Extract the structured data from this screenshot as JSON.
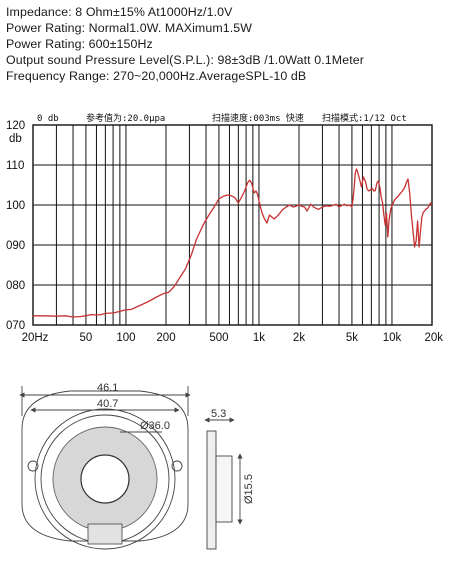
{
  "specs": [
    "Impedance: 8 Ohm±15%  At1000Hz/1.0V",
    "Power Rating: Normal1.0W. MAXimum1.5W",
    "Power Rating: 600±150Hz",
    "Output sound Pressure Level(S.P.L.): 98±3dB /1.0Watt 0.1Meter",
    "Frequency Range: 270~20,000Hz.AverageSPL-10 dB"
  ],
  "chart_header": {
    "zero_db": "0 db",
    "ref_value": "参考值为:20.0μpa",
    "sweep_speed": "扫描速度:003ms  快速",
    "sweep_mode": "扫描模式:1/12  Oct"
  },
  "colors": {
    "curve": "#c83232",
    "grid": "#111111"
  },
  "chart_data": {
    "type": "line",
    "title": "",
    "xlabel": "",
    "ylabel": "db",
    "x_scale": "log",
    "xlim": [
      20,
      20000
    ],
    "ylim": [
      70,
      120
    ],
    "y_tick_labels": [
      "070",
      "080",
      "090",
      "100",
      "110",
      "120"
    ],
    "y_tick_values": [
      70,
      80,
      90,
      100,
      110,
      120
    ],
    "x_tick_labels": [
      "20Hz",
      "50",
      "100",
      "200",
      "500",
      "1k",
      "2k",
      "5k",
      "10k",
      "20k"
    ],
    "x_tick_values": [
      20,
      50,
      100,
      200,
      500,
      1000,
      2000,
      5000,
      10000,
      20000
    ],
    "grid": true,
    "series": [
      {
        "x": [
          20,
          25,
          30,
          35,
          40,
          45,
          50,
          55,
          60,
          65,
          70,
          80,
          90,
          100,
          110,
          120,
          130,
          150,
          170,
          190,
          210,
          230,
          250,
          280,
          310,
          340,
          380,
          420,
          460,
          500,
          540,
          580,
          620,
          660,
          700,
          740,
          780,
          820,
          850,
          880,
          920,
          950,
          980,
          1000,
          1050,
          1100,
          1150,
          1200,
          1300,
          1400,
          1500,
          1600,
          1700,
          1800,
          1900,
          2000,
          2100,
          2200,
          2300,
          2450,
          2600,
          2800,
          3000,
          3200,
          3400,
          3600,
          3800,
          4000,
          4200,
          4400,
          4600,
          4800,
          5000,
          5100,
          5200,
          5300,
          5400,
          5500,
          5700,
          5900,
          6100,
          6300,
          6500,
          6700,
          6900,
          7100,
          7300,
          7500,
          7700,
          7900,
          8100,
          8300,
          8500,
          8700,
          8900,
          9100,
          9300,
          9500,
          9800,
          10200,
          10600,
          11000,
          11500,
          12000,
          12500,
          12800,
          13200,
          13600,
          14000,
          14400,
          14800,
          15200,
          15600,
          16000,
          16400,
          16800,
          17200,
          17600,
          18000,
          18500,
          19000,
          19500,
          20000
        ],
        "y": [
          72.3,
          72.3,
          72.2,
          72.3,
          72.0,
          72.1,
          72.3,
          72.6,
          72.5,
          72.6,
          72.9,
          73.0,
          73.4,
          73.8,
          73.9,
          74.5,
          75.0,
          76.0,
          77.0,
          77.8,
          78.2,
          79.6,
          81.5,
          84.0,
          87.5,
          91.5,
          95.0,
          97.5,
          99.5,
          101.5,
          102.2,
          102.5,
          102.3,
          101.8,
          100.5,
          102.0,
          103.5,
          105.5,
          106.2,
          105.5,
          103.0,
          103.5,
          102.5,
          101.0,
          98.2,
          96.5,
          95.5,
          97.5,
          96.5,
          97.5,
          98.8,
          99.5,
          100.0,
          99.5,
          99.7,
          100.0,
          99.7,
          99.5,
          98.5,
          100.2,
          99.4,
          98.9,
          99.5,
          99.8,
          99.7,
          99.9,
          100.2,
          99.5,
          99.9,
          100.2,
          99.8,
          100.0,
          99.5,
          101.5,
          104.5,
          108.0,
          109.0,
          108.5,
          106.5,
          104.5,
          107.0,
          106.0,
          104.0,
          103.5,
          103.8,
          104.2,
          103.5,
          103.6,
          105.5,
          106.0,
          104.5,
          102.0,
          100.5,
          97.5,
          95.0,
          98.0,
          92.0,
          96.0,
          99.0,
          100.5,
          101.5,
          102.0,
          102.8,
          103.5,
          104.5,
          105.5,
          106.5,
          103.0,
          97.5,
          93.5,
          89.5,
          91.0,
          96.0,
          89.5,
          93.5,
          97.0,
          98.2,
          98.5,
          99.0,
          99.2,
          99.8,
          100.5,
          100.0
        ]
      }
    ]
  },
  "drawing": {
    "dim_outer": "46.1",
    "dim_mid": "40.7",
    "dim_diameter": "Ø36.0",
    "dim_side_top": "5.3",
    "dim_side_vertical": "Ø15.5"
  }
}
